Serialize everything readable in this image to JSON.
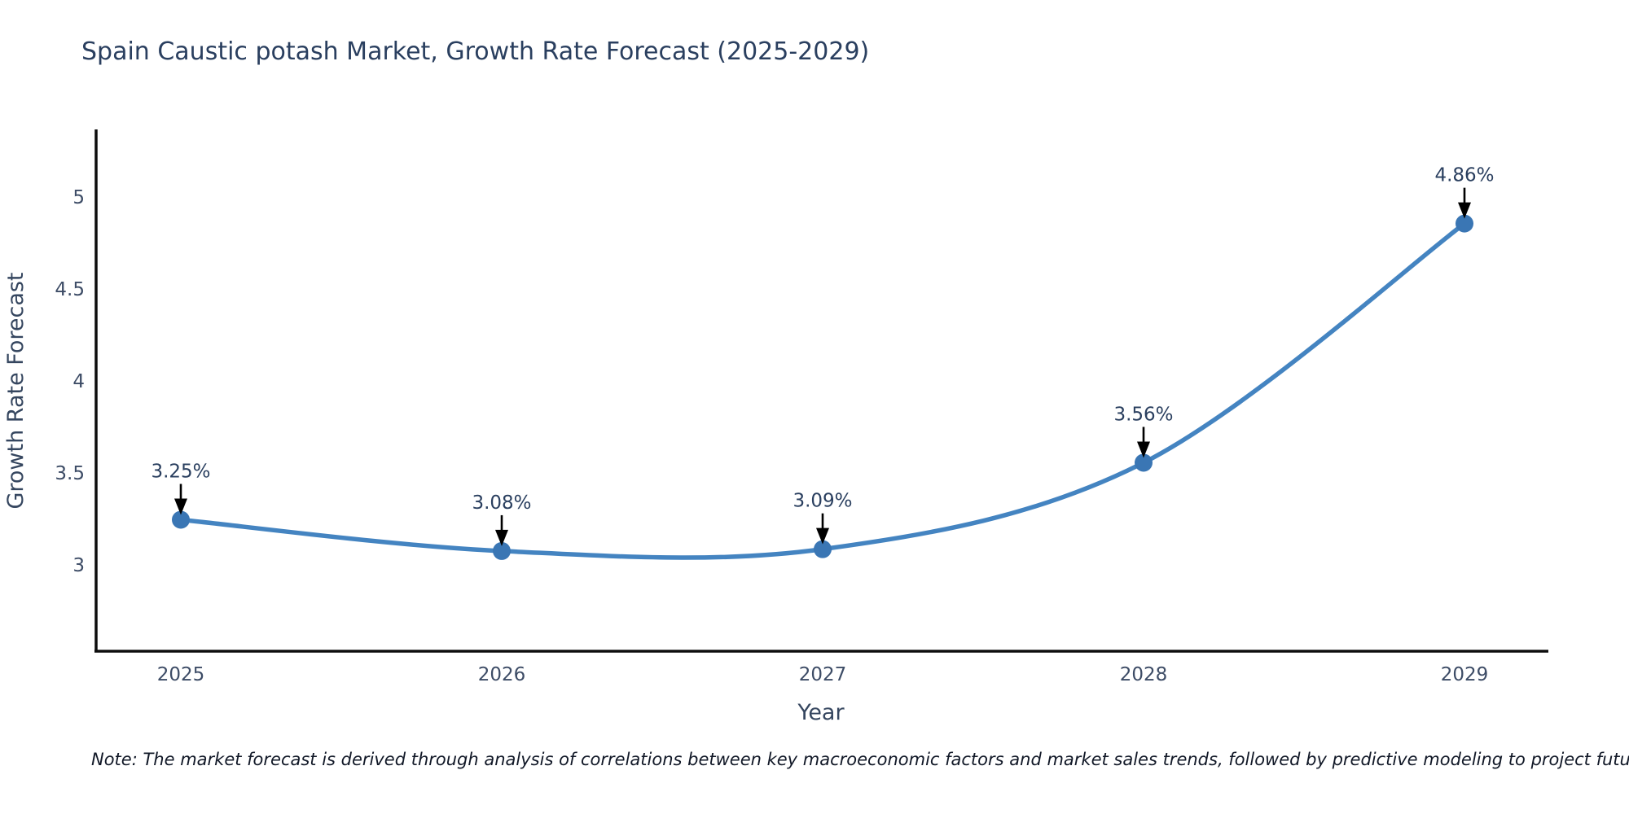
{
  "title": "Spain Caustic potash Market, Growth Rate Forecast (2025-2029)",
  "note": "Note: The market forecast is derived through analysis of correlations between key macroeconomic factors and market sales trends, followed by predictive modeling to project future sales",
  "chart_data": {
    "type": "line",
    "line_shape": "spline",
    "title": "Spain Caustic potash Market, Growth Rate Forecast (2025-2029)",
    "xlabel": "Year",
    "ylabel": "Growth Rate Forecast",
    "x": [
      2025,
      2026,
      2027,
      2028,
      2029
    ],
    "values": [
      3.25,
      3.08,
      3.09,
      3.56,
      4.86
    ],
    "point_labels": [
      "3.25%",
      "3.08%",
      "3.09%",
      "3.56%",
      "4.86%"
    ],
    "x_tick_labels": [
      "2025",
      "2026",
      "2027",
      "2028",
      "2029"
    ],
    "y_ticks": [
      3,
      3.5,
      4,
      4.5,
      5
    ],
    "y_tick_labels": [
      "3",
      "3.5",
      "4",
      "4.5",
      "5"
    ],
    "xlim": [
      2024.74,
      2029.26
    ],
    "ylim": [
      2.53,
      5.37
    ],
    "grid": false,
    "legend_position": "none",
    "annotations_have_arrows": true
  },
  "colors": {
    "background": "#ffffff",
    "line": "#4484c1",
    "marker": "#3a76b4",
    "axis_line": "#0d0d0d",
    "title_text": "#2a3f5f",
    "tick_text": "#3d4c66",
    "axis_title_text": "#35465f",
    "annotation_text": "#2a3f5f",
    "arrow": "#000000",
    "note_text": "#111827"
  }
}
